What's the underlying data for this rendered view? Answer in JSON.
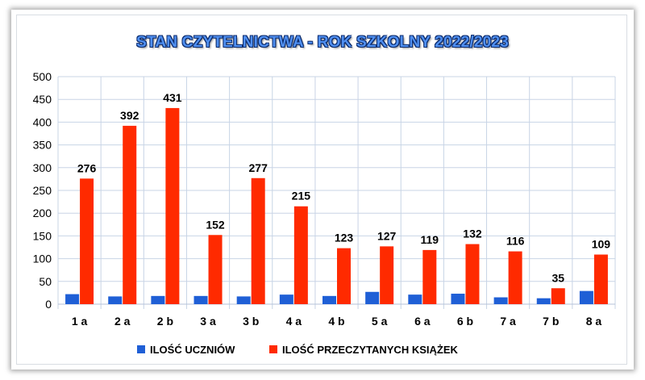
{
  "chart_data": {
    "type": "bar",
    "title": "STAN CZYTELNICTWA - ROK SZKOLNY 2022/2023",
    "categories": [
      "1 a",
      "2 a",
      "2 b",
      "3 a",
      "3 b",
      "4 a",
      "4 b",
      "5 a",
      "6 a",
      "6 b",
      "7 a",
      "7 b",
      "8 a"
    ],
    "series": [
      {
        "name": "ILOŚĆ UCZNIÓW",
        "color": "#1f5fd6",
        "values": [
          22,
          17,
          18,
          18,
          17,
          21,
          18,
          27,
          21,
          23,
          15,
          13,
          29
        ]
      },
      {
        "name": "ILOŚĆ PRZECZYTANYCH KSIĄŻEK",
        "color": "#ff2a00",
        "values": [
          276,
          392,
          431,
          152,
          277,
          215,
          123,
          127,
          119,
          132,
          116,
          35,
          109
        ]
      }
    ],
    "data_labels_series": "ILOŚĆ PRZECZYTANYCH KSIĄŻEK",
    "ylim": [
      0,
      500
    ],
    "yticks": [
      0,
      50,
      100,
      150,
      200,
      250,
      300,
      350,
      400,
      450,
      500
    ],
    "grid": true,
    "legend": "bottom"
  }
}
